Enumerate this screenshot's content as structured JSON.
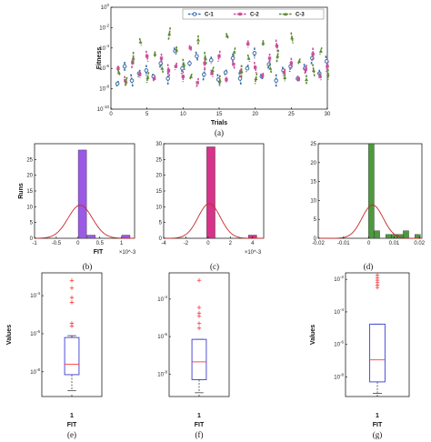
{
  "figure": {
    "panel_labels": [
      "(a)",
      "(b)",
      "(c)",
      "(d)",
      "(e)",
      "(f)",
      "(g)"
    ]
  },
  "colors": {
    "c1": "#3a6ea5",
    "c2": "#cc4f9b",
    "c3": "#5d8a34",
    "purple": "#9b59e6",
    "magenta": "#d6338a",
    "green": "#4c9a3e",
    "red_curve": "#c62828",
    "box": "#3b3bd4",
    "median": "#ff3b3b",
    "outlier": "#ff3b3b"
  },
  "chart_data": [
    {
      "type": "line",
      "ylabel": "Fitness",
      "xlabel": "Trials",
      "x_ticks": [
        "0",
        "5",
        "10",
        "15",
        "20",
        "25",
        "30"
      ],
      "y_ticks": [
        "10^-10",
        "10^-8",
        "10^-6",
        "10^-4",
        "10^-2",
        "10^0"
      ],
      "xlim": [
        0,
        30
      ],
      "ylim_log10": [
        -10,
        0
      ],
      "yscale": "log",
      "legend_position": "top-right",
      "series": [
        {
          "name": "C-1",
          "marker": "circle",
          "log10_values": [
            -7.5,
            -5.8,
            -7.2,
            -6.5,
            -6.2,
            -6.8,
            -5.5,
            -7.0,
            -4.3,
            -6.0,
            -5.5,
            -4.8,
            -6.6,
            -5.2,
            -7.1,
            -6.4,
            -5.0,
            -7.0,
            -6.0,
            -4.5,
            -6.8,
            -5.6,
            -7.2,
            -6.2,
            -5.8,
            -7.0,
            -6.0,
            -5.0,
            -6.5,
            -5.3
          ]
        },
        {
          "name": "C-2",
          "marker": "square",
          "log10_values": [
            -6.0,
            -7.2,
            -5.4,
            -6.6,
            -4.8,
            -7.0,
            -5.0,
            -6.2,
            -5.8,
            -6.8,
            -4.0,
            -7.4,
            -5.5,
            -6.5,
            -4.8,
            -7.1,
            -5.6,
            -6.3,
            -3.6,
            -5.9,
            -6.7,
            -5.0,
            -3.8,
            -6.4,
            -5.5,
            -7.0,
            -6.1,
            -4.6,
            -6.8,
            -5.8
          ]
        },
        {
          "name": "C-3",
          "marker": "triangle",
          "log10_values": [
            -6.4,
            -7.3,
            -5.0,
            -3.4,
            -6.9,
            -4.6,
            -6.0,
            -2.6,
            -4.2,
            -5.6,
            -6.8,
            -3.2,
            -5.0,
            -6.2,
            -7.2,
            -2.8,
            -4.4,
            -6.3,
            -5.0,
            -7.0,
            -3.5,
            -6.0,
            -4.8,
            -6.9,
            -3.0,
            -5.3,
            -7.1,
            -6.2,
            -4.3,
            -6.6
          ]
        }
      ]
    },
    {
      "type": "bar",
      "ylabel": "Runs",
      "xlabel": "FIT",
      "x_exponent": "×10^-3",
      "x_ticks": [
        "-1",
        "-0.5",
        "0",
        "0.5",
        "1"
      ],
      "y_ticks": [
        "0",
        "5",
        "10",
        "15",
        "20",
        "25"
      ],
      "xlim": [
        -1,
        1.3
      ],
      "ylim": [
        0,
        30
      ],
      "bins": [
        {
          "x": 0.1,
          "value": 28
        },
        {
          "x": 0.3,
          "value": 1
        },
        {
          "x": 1.1,
          "value": 1
        }
      ],
      "bin_width": 0.19,
      "fit": {
        "type": "normal",
        "mean": 0.05,
        "sd": 0.28,
        "peak": 10.5
      }
    },
    {
      "type": "bar",
      "ylabel": "Runs",
      "xlabel": "",
      "x_exponent": "×10^-3",
      "x_ticks": [
        "-4",
        "-2",
        "0",
        "2",
        "4"
      ],
      "y_ticks": [
        "0",
        "5",
        "10",
        "15",
        "20",
        "25",
        "30"
      ],
      "xlim": [
        -4,
        5
      ],
      "ylim": [
        0,
        30
      ],
      "bins": [
        {
          "x": 0.25,
          "value": 29
        },
        {
          "x": 4.0,
          "value": 1
        }
      ],
      "bin_width": 0.75,
      "fit": {
        "type": "normal",
        "mean": 0.1,
        "sd": 1.0,
        "peak": 11
      }
    },
    {
      "type": "bar",
      "ylabel": "",
      "xlabel": "",
      "x_exponent": "",
      "x_ticks": [
        "-0.02",
        "-0.01",
        "0",
        "0.01",
        "0.02"
      ],
      "y_ticks": [
        "0",
        "5",
        "10",
        "15",
        "20",
        "25"
      ],
      "xlim": [
        -0.02,
        0.021
      ],
      "ylim": [
        0,
        25
      ],
      "bins": [
        {
          "x": 0.001,
          "value": 25
        },
        {
          "x": 0.0032,
          "value": 2
        },
        {
          "x": 0.0078,
          "value": 1
        },
        {
          "x": 0.0101,
          "value": 1
        },
        {
          "x": 0.0124,
          "value": 1
        },
        {
          "x": 0.0147,
          "value": 2
        },
        {
          "x": 0.0193,
          "value": 1
        }
      ],
      "bin_width": 0.0022,
      "fit": {
        "type": "normal",
        "mean": 0.0015,
        "sd": 0.0042,
        "peak": 8.8
      }
    },
    {
      "type": "box",
      "ylabel": "Values",
      "xlabel": "FIT",
      "category": "1",
      "yscale": "log",
      "y_ticks": [
        "10^-4",
        "10^-6",
        "10^-8"
      ],
      "ylim_log10": [
        -9.3,
        -2.8
      ],
      "box_log10": {
        "q1": -8.15,
        "median": -7.6,
        "q3": -6.2,
        "whisker_low": -9.0,
        "whisker_high": -6.1
      },
      "outliers_log10": [
        -3.2,
        -3.6,
        -4.1,
        -4.35,
        -5.45,
        -5.6
      ]
    },
    {
      "type": "box",
      "ylabel": "",
      "xlabel": "FIT",
      "category": "1",
      "yscale": "log",
      "y_ticks": [
        "10^-4",
        "10^-6",
        "10^-8"
      ],
      "ylim_log10": [
        -9.2,
        -2.6
      ],
      "box_log10": {
        "q1": -8.3,
        "median": -7.35,
        "q3": -6.15,
        "whisker_low": -9.0,
        "whisker_high": -6.15
      },
      "outliers_log10": [
        -3.0,
        -4.45,
        -4.75,
        -4.9,
        -5.3,
        -5.55
      ]
    },
    {
      "type": "box",
      "ylabel": "Values",
      "xlabel": "FIT",
      "category": "1",
      "yscale": "log",
      "y_ticks": [
        "10^-2",
        "10^-4",
        "10^-6",
        "10^-8"
      ],
      "ylim_log10": [
        -9.2,
        -1.6
      ],
      "box_log10": {
        "q1": -8.3,
        "median": -6.95,
        "q3": -4.75,
        "whisker_low": -9.0,
        "whisker_high": -4.75
      },
      "outliers_log10": [
        -1.75,
        -1.9,
        -2.05,
        -2.2,
        -2.35,
        -2.5
      ]
    }
  ]
}
